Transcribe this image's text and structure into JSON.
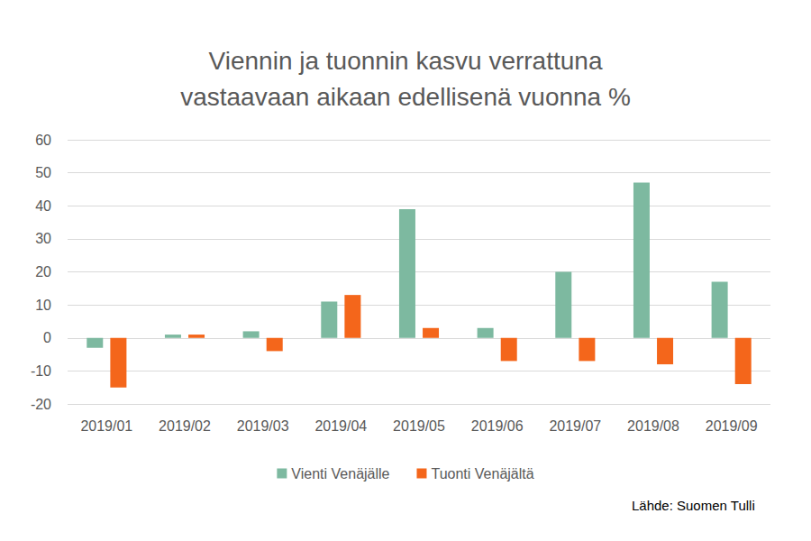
{
  "chart_data": {
    "type": "bar",
    "title": "Viennin ja tuonnin kasvu verrattuna\nvastaavaan aikaan edellisenä vuonna %",
    "annotation": "Lähde: Suomen Tulli",
    "categories": [
      "2019/01",
      "2019/02",
      "2019/03",
      "2019/04",
      "2019/05",
      "2019/06",
      "2019/07",
      "2019/08",
      "2019/09"
    ],
    "series": [
      {
        "name": "Vienti Venäjälle",
        "color": "#7DB9A0",
        "values": [
          -3,
          1,
          2,
          11,
          39,
          3,
          20,
          47,
          17
        ]
      },
      {
        "name": "Tuonti Venäjältä",
        "color": "#F4661B",
        "values": [
          -15,
          1,
          -4,
          13,
          3,
          -7,
          -7,
          -8,
          -14
        ]
      }
    ],
    "ylim": [
      -20,
      60
    ],
    "yticks": [
      -20,
      -10,
      0,
      10,
      20,
      30,
      40,
      50,
      60
    ],
    "grid": true,
    "legend": "bottom"
  }
}
